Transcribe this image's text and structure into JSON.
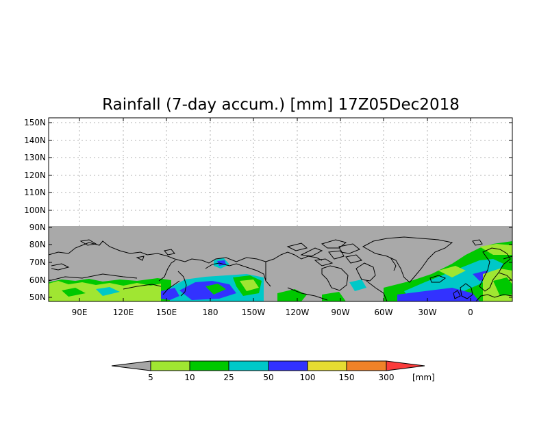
{
  "title": "Rainfall (7-day accum.) [mm] 17Z05Dec2018",
  "lat_ticks": [
    "150N",
    "140N",
    "130N",
    "120N",
    "110N",
    "100N",
    "90N",
    "80N",
    "70N",
    "60N",
    "50N"
  ],
  "lon_ticks": [
    "90E",
    "120E",
    "150E",
    "180",
    "150W",
    "120W",
    "90W",
    "60W",
    "30W",
    "0"
  ],
  "colorbar": {
    "labels": [
      "5",
      "10",
      "25",
      "50",
      "100",
      "150",
      "300"
    ],
    "unit": "[mm]",
    "colors": [
      "#a6a6a6",
      "#a0e632",
      "#00c800",
      "#00c8c8",
      "#3232ff",
      "#e6dc32",
      "#f08228",
      "#fa3c3c"
    ]
  },
  "colors": {
    "no_data": "#a9a9a9",
    "coastline": "#000000",
    "grid": "#b0b0b0",
    "frame": "#000000"
  }
}
